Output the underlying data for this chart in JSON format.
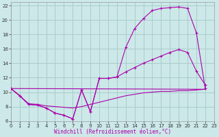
{
  "xlabel": "Windchill (Refroidissement éolien,°C)",
  "bg_color": "#cce8e8",
  "grid_color": "#aacccc",
  "line_color": "#aa00aa",
  "xlim": [
    0,
    23
  ],
  "ylim": [
    6,
    22.5
  ],
  "xticks": [
    0,
    1,
    2,
    3,
    4,
    5,
    6,
    7,
    8,
    9,
    10,
    11,
    12,
    13,
    14,
    15,
    16,
    17,
    18,
    19,
    20,
    21,
    22,
    23
  ],
  "yticks": [
    6,
    8,
    10,
    12,
    14,
    16,
    18,
    20,
    22
  ],
  "curve1_x": [
    0,
    1,
    2,
    3,
    4,
    5,
    6,
    7,
    8,
    9,
    10,
    11,
    12,
    13,
    14,
    15,
    16,
    17,
    18,
    19,
    20,
    21,
    22
  ],
  "curve1_y": [
    10.5,
    9.5,
    8.3,
    8.2,
    7.8,
    7.1,
    6.8,
    6.3,
    10.3,
    7.3,
    11.9,
    11.9,
    12.1,
    16.2,
    18.8,
    20.2,
    21.3,
    21.6,
    21.7,
    21.8,
    21.6,
    18.2,
    10.5
  ],
  "curve2_x": [
    0,
    1,
    2,
    3,
    4,
    5,
    6,
    7,
    8,
    9,
    10,
    11,
    12,
    13,
    14,
    15,
    16,
    17,
    18,
    19,
    20,
    21,
    22
  ],
  "curve2_y": [
    10.5,
    9.5,
    8.3,
    8.2,
    7.8,
    7.1,
    6.8,
    6.3,
    10.3,
    7.3,
    11.9,
    11.9,
    12.1,
    12.8,
    13.4,
    14.0,
    14.5,
    15.0,
    15.5,
    15.9,
    15.5,
    12.9,
    11.0
  ],
  "curve3_x": [
    0,
    22
  ],
  "curve3_y": [
    10.5,
    10.4
  ],
  "curve4_x": [
    0,
    1,
    2,
    3,
    4,
    5,
    6,
    7,
    8,
    9,
    10,
    11,
    12,
    13,
    14,
    15,
    16,
    17,
    18,
    19,
    20,
    21,
    22
  ],
  "curve4_y": [
    10.5,
    9.5,
    8.4,
    8.3,
    8.1,
    8.0,
    7.9,
    7.8,
    8.0,
    8.3,
    8.6,
    8.9,
    9.2,
    9.5,
    9.7,
    9.9,
    10.0,
    10.1,
    10.1,
    10.2,
    10.2,
    10.3,
    10.4
  ]
}
